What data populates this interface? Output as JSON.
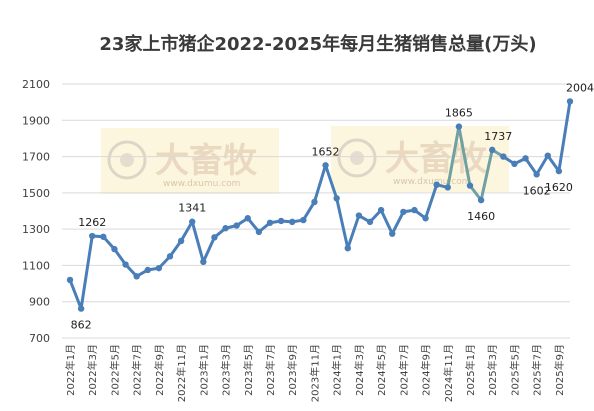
{
  "chart_data": {
    "type": "line",
    "title": "23家上市猪企2022-2025年每月生猪销售总量(万头)",
    "xlabel": "",
    "ylabel": "",
    "ylim": [
      700,
      2100
    ],
    "yticks": [
      700,
      900,
      1100,
      1300,
      1500,
      1700,
      1900,
      2100
    ],
    "grid": true,
    "legend": "none",
    "colors": {
      "line": "#4a7eb8",
      "highlight": "#70a0a0",
      "marker": "#4a7eb8"
    },
    "watermark": {
      "text": "大畜牧",
      "url": "www.dxumu.com"
    },
    "x": [
      "2022年1月",
      "2022年2月",
      "2022年3月",
      "2022年4月",
      "2022年5月",
      "2022年6月",
      "2022年7月",
      "2022年8月",
      "2022年9月",
      "2022年10月",
      "2022年11月",
      "2022年12月",
      "2023年1月",
      "2023年2月",
      "2023年3月",
      "2023年4月",
      "2023年5月",
      "2023年6月",
      "2023年7月",
      "2023年8月",
      "2023年9月",
      "2023年10月",
      "2023年11月",
      "2023年12月",
      "2024年1月",
      "2024年2月",
      "2024年3月",
      "2024年4月",
      "2024年5月",
      "2024年6月",
      "2024年7月",
      "2024年8月",
      "2024年9月",
      "2024年10月",
      "2024年11月",
      "2024年12月",
      "2025年1月",
      "2025年2月",
      "2025年3月",
      "2025年4月",
      "2025年5月",
      "2025年6月",
      "2025年7月",
      "2025年8月",
      "2025年9月",
      "2025年10月"
    ],
    "x_tick_labels": [
      "2022年1月",
      "2022年3月",
      "2022年5月",
      "2022年7月",
      "2022年9月",
      "2022年11月",
      "2023年1月",
      "2023年3月",
      "2023年5月",
      "2023年7月",
      "2023年9月",
      "2023年11月",
      "2024年1月",
      "2024年3月",
      "2024年5月",
      "2024年7月",
      "2024年9月",
      "2024年11月",
      "2025年1月",
      "2025年3月",
      "2025年5月",
      "2025年7月",
      "2025年9月"
    ],
    "series": [
      {
        "values": [
          1020,
          862,
          1262,
          1258,
          1190,
          1105,
          1040,
          1075,
          1085,
          1150,
          1235,
          1341,
          1120,
          1255,
          1305,
          1320,
          1360,
          1285,
          1335,
          1345,
          1340,
          1350,
          1450,
          1652,
          1470,
          1195,
          1375,
          1340,
          1405,
          1275,
          1395,
          1405,
          1360,
          1545,
          1530,
          1865,
          1540,
          1460,
          1737,
          1700,
          1660,
          1690,
          1602,
          1705,
          1620,
          2004
        ]
      }
    ],
    "data_labels": [
      {
        "index": 1,
        "text": "862"
      },
      {
        "index": 2,
        "text": "1262"
      },
      {
        "index": 11,
        "text": "1341"
      },
      {
        "index": 23,
        "text": "1652"
      },
      {
        "index": 35,
        "text": "1865"
      },
      {
        "index": 37,
        "text": "1460"
      },
      {
        "index": 38,
        "text": "1737"
      },
      {
        "index": 42,
        "text": "1602"
      },
      {
        "index": 44,
        "text": "1620"
      },
      {
        "index": 45,
        "text": "2004"
      }
    ]
  }
}
